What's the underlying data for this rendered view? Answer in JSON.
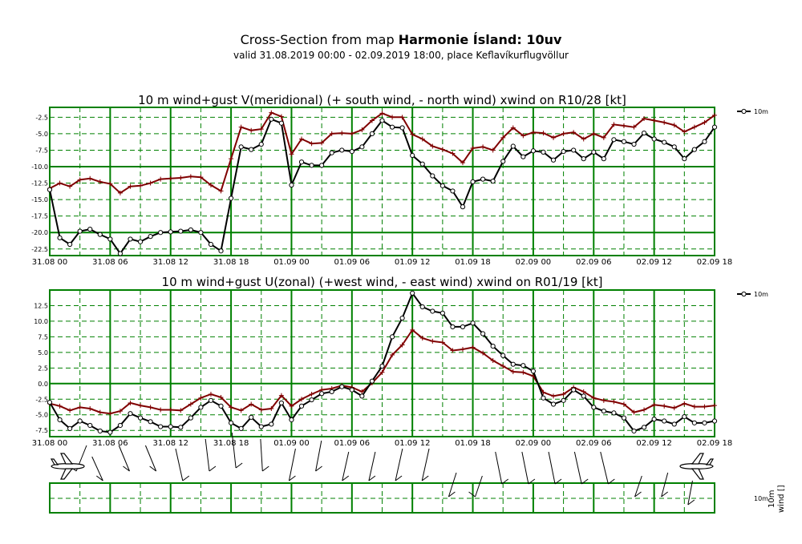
{
  "header": {
    "title_prefix": "Cross-Section from map ",
    "title_bold": "Harmonie Ísland: 10uv",
    "subtitle": "valid 31.08.2019 00:00 - 02.09.2019 18:00, place Keflavíkurflugvöllur"
  },
  "colors": {
    "grid_major": "#008000",
    "grid_minor": "#008000",
    "mean_line": "#000000",
    "gust_line": "#800000",
    "background": "#ffffff"
  },
  "time_ticks": [
    "31.08 00",
    "31.08 06",
    "31.08 12",
    "31.08 18",
    "01.09 00",
    "01.09 06",
    "01.09 12",
    "01.09 18",
    "02.09 00",
    "02.09 06",
    "02.09 12",
    "02.09 18"
  ],
  "chart_data": [
    {
      "type": "line",
      "title": "10 m wind+gust V(meridional) (+ south wind, - north wind) xwind on R10/28 [kt]",
      "x_unit": "hours since 31.08 00",
      "xlim": [
        0,
        66
      ],
      "ylim": [
        -23.5,
        -1.0
      ],
      "y_ticks": [
        "-2.5",
        "-5.0",
        "-7.5",
        "-10.0",
        "-12.5",
        "-15.0",
        "-17.5",
        "-20.0",
        "-22.5"
      ],
      "y_tick_values": [
        -2.5,
        -5,
        -7.5,
        -10,
        -12.5,
        -15,
        -17.5,
        -20,
        -22.5
      ],
      "legend": "10m",
      "legend_position": "top-right",
      "x": [
        0,
        1,
        2,
        3,
        4,
        5,
        6,
        7,
        8,
        9,
        10,
        11,
        12,
        13,
        14,
        15,
        16,
        17,
        18,
        19,
        20,
        21,
        22,
        23,
        24,
        25,
        26,
        27,
        28,
        29,
        30,
        31,
        32,
        33,
        34,
        35,
        36,
        37,
        38,
        39,
        40,
        41,
        42,
        43,
        44,
        45,
        46,
        47,
        48,
        49,
        50,
        51,
        52,
        53,
        54,
        55,
        56,
        57,
        58,
        59,
        60,
        61,
        62,
        63,
        64,
        65,
        66
      ],
      "series": [
        {
          "name": "10m",
          "values": [
            -13.5,
            -20.8,
            -21.8,
            -19.8,
            -19.5,
            -20.3,
            -21.0,
            -23.2,
            -21.0,
            -21.4,
            -20.6,
            -20.0,
            -19.9,
            -19.8,
            -19.6,
            -20.0,
            -21.8,
            -22.8,
            -14.8,
            -7.0,
            -7.4,
            -6.6,
            -2.8,
            -3.4,
            -12.8,
            -9.3,
            -9.8,
            -9.8,
            -7.9,
            -7.5,
            -7.7,
            -7.0,
            -5.0,
            -3.0,
            -4.0,
            -4.1,
            -8.3,
            -9.6,
            -11.4,
            -12.9,
            -13.7,
            -16.1,
            -12.3,
            -11.9,
            -12.2,
            -9.2,
            -6.9,
            -8.5,
            -7.6,
            -7.8,
            -9.0,
            -7.7,
            -7.5,
            -8.8,
            -7.8,
            -8.8,
            -5.9,
            -6.2,
            -6.6,
            -4.9,
            -5.8,
            -6.3,
            -7.0,
            -8.8,
            -7.4,
            -6.2,
            -4.0
          ]
        },
        {
          "name": "gust",
          "values": [
            -13.3,
            -12.5,
            -13.0,
            -12.0,
            -11.8,
            -12.3,
            -12.6,
            -14.0,
            -13.0,
            -12.9,
            -12.5,
            -11.9,
            -11.8,
            -11.7,
            -11.5,
            -11.6,
            -12.8,
            -13.7,
            -8.8,
            -4.0,
            -4.5,
            -4.3,
            -1.8,
            -2.4,
            -8.1,
            -5.8,
            -6.5,
            -6.4,
            -5.0,
            -4.9,
            -5.0,
            -4.4,
            -3.0,
            -1.9,
            -2.5,
            -2.5,
            -5.1,
            -5.8,
            -6.9,
            -7.4,
            -8.0,
            -9.4,
            -7.2,
            -7.0,
            -7.5,
            -5.6,
            -4.1,
            -5.3,
            -4.8,
            -4.9,
            -5.6,
            -5.0,
            -4.8,
            -5.8,
            -5.0,
            -5.6,
            -3.6,
            -3.8,
            -4.0,
            -2.7,
            -3.0,
            -3.3,
            -3.7,
            -4.7,
            -4.0,
            -3.3,
            -2.2
          ]
        }
      ]
    },
    {
      "type": "line",
      "title": "10 m wind+gust U(zonal) (+west wind, - east wind) xwind on R01/19 [kt]",
      "x_unit": "hours since 31.08 00",
      "xlim": [
        0,
        66
      ],
      "ylim": [
        -8.5,
        15.0
      ],
      "y_ticks": [
        "12.5",
        "10.0",
        "7.5",
        "5.0",
        "2.5",
        "0.0",
        "-2.5",
        "-5.0",
        "-7.5"
      ],
      "y_tick_values": [
        12.5,
        10,
        7.5,
        5,
        2.5,
        0,
        -2.5,
        -5,
        -7.5
      ],
      "legend": "10m",
      "legend_position": "top-right",
      "x": [
        0,
        1,
        2,
        3,
        4,
        5,
        6,
        7,
        8,
        9,
        10,
        11,
        12,
        13,
        14,
        15,
        16,
        17,
        18,
        19,
        20,
        21,
        22,
        23,
        24,
        25,
        26,
        27,
        28,
        29,
        30,
        31,
        32,
        33,
        34,
        35,
        36,
        37,
        38,
        39,
        40,
        41,
        42,
        43,
        44,
        45,
        46,
        47,
        48,
        49,
        50,
        51,
        52,
        53,
        54,
        55,
        56,
        57,
        58,
        59,
        60,
        61,
        62,
        63,
        64,
        65,
        66
      ],
      "series": [
        {
          "name": "10m",
          "values": [
            -3.0,
            -5.8,
            -7.2,
            -6.0,
            -6.7,
            -7.6,
            -7.8,
            -6.7,
            -4.8,
            -5.5,
            -6.1,
            -6.9,
            -6.9,
            -7.0,
            -5.5,
            -3.8,
            -2.7,
            -3.6,
            -6.3,
            -7.2,
            -5.4,
            -6.9,
            -6.5,
            -3.1,
            -5.8,
            -3.6,
            -2.6,
            -1.6,
            -1.3,
            -0.5,
            -1.0,
            -2.0,
            0.4,
            2.8,
            7.5,
            10.5,
            14.5,
            12.3,
            11.6,
            11.3,
            9.1,
            9.1,
            9.7,
            8.0,
            6.0,
            4.5,
            3.1,
            2.9,
            2.0,
            -2.3,
            -3.3,
            -2.7,
            -1.0,
            -2.0,
            -3.8,
            -4.4,
            -4.7,
            -5.5,
            -7.6,
            -7.0,
            -5.7,
            -6.0,
            -6.5,
            -5.3,
            -6.3,
            -6.3,
            -6.0
          ]
        },
        {
          "name": "gust",
          "values": [
            -3.2,
            -3.6,
            -4.3,
            -3.8,
            -4.0,
            -4.6,
            -4.8,
            -4.4,
            -3.1,
            -3.5,
            -3.8,
            -4.2,
            -4.2,
            -4.3,
            -3.3,
            -2.3,
            -1.7,
            -2.2,
            -3.8,
            -4.3,
            -3.3,
            -4.2,
            -4.0,
            -1.9,
            -3.6,
            -2.5,
            -1.7,
            -1.0,
            -0.8,
            -0.3,
            -0.6,
            -1.3,
            0.1,
            1.8,
            4.6,
            6.2,
            8.6,
            7.3,
            6.8,
            6.6,
            5.3,
            5.5,
            5.8,
            4.9,
            3.7,
            2.8,
            1.9,
            1.8,
            1.2,
            -1.4,
            -2.0,
            -1.7,
            -0.6,
            -1.3,
            -2.3,
            -2.7,
            -2.9,
            -3.3,
            -4.6,
            -4.2,
            -3.4,
            -3.6,
            -3.9,
            -3.2,
            -3.7,
            -3.7,
            -3.5
          ]
        }
      ]
    }
  ],
  "barbs": {
    "label_level": "10m",
    "label_quantity": "wind",
    "label_unit": "[]",
    "times": [
      0,
      6,
      12,
      18,
      24,
      30,
      36,
      42,
      48,
      54,
      60,
      66
    ]
  }
}
